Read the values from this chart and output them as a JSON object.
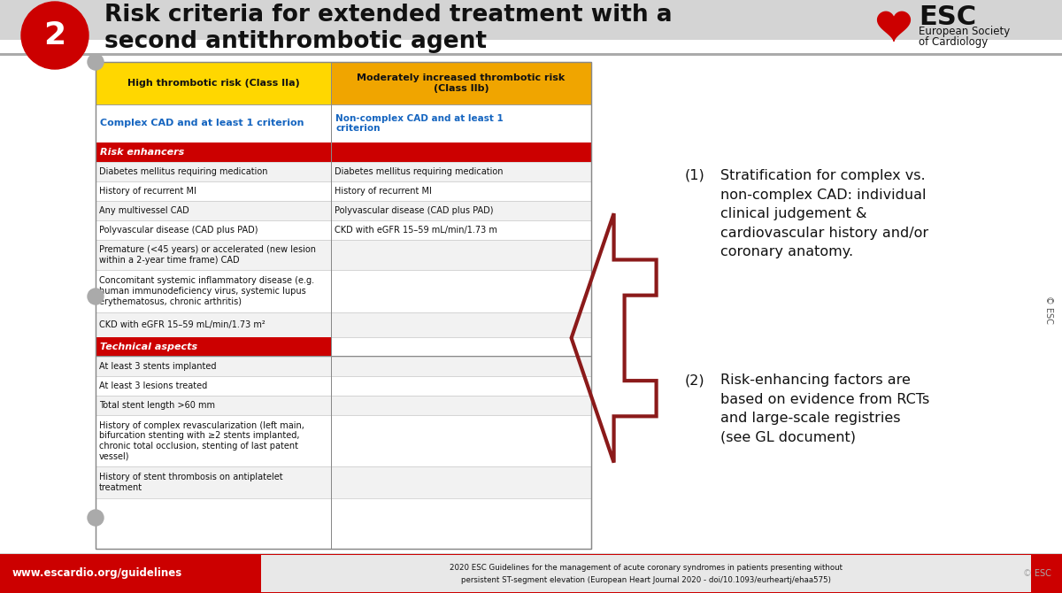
{
  "title_line1": "Risk criteria for extended treatment with a",
  "title_line2": "second antithrombotic agent",
  "slide_number": "2",
  "bg_color": "#d4d4d4",
  "header_yellow": "#FFD700",
  "header_orange": "#F0A500",
  "red_bar": "#CC0000",
  "dark_red": "#8B1A1A",
  "blue_text": "#1565C0",
  "col1_header": "High thrombotic risk (Class IIa)",
  "col2_header": "Moderately increased thrombotic risk\n(Class IIb)",
  "col1_sub": "Complex CAD and at least 1 criterion",
  "col2_sub": "Non-complex CAD and at least 1\ncriterion",
  "section1_label": "Risk enhancers",
  "section2_label": "Technical aspects",
  "col1_rows_sect1": [
    "Diabetes mellitus requiring medication",
    "History of recurrent MI",
    "Any multivessel CAD",
    "Polyvascular disease (CAD plus PAD)",
    "Premature (<45 years) or accelerated (new lesion\nwithin a 2-year time frame) CAD",
    "Concomitant systemic inflammatory disease (e.g.\nhuman immunodeficiency virus, systemic lupus\nerythematosus, chronic arthritis)",
    "CKD with eGFR 15–59 mL/min/1.73 m²"
  ],
  "col2_rows_sect1": [
    "Diabetes mellitus requiring medication",
    "History of recurrent MI",
    "Polyvascular disease (CAD plus PAD)",
    "CKD with eGFR 15–59 mL/min/1.73 m",
    "",
    "",
    ""
  ],
  "col1_rows_sect2": [
    "At least 3 stents implanted",
    "At least 3 lesions treated",
    "Total stent length >60 mm",
    "History of complex revascularization (left main,\nbifurcation stenting with ≥2 stents implanted,\nchronic total occlusion, stenting of last patent\nvessel)",
    "History of stent thrombosis on antiplatelet\ntreatment"
  ],
  "col2_rows_sect2": [
    "",
    "",
    "",
    "",
    ""
  ],
  "ann1_num": "(1)",
  "ann1_text": "Stratification for complex vs.\nnon-complex CAD: individual\nclinical judgement &\ncardiovascular history and/or\ncoronary anatomy.",
  "ann2_num": "(2)",
  "ann2_text": "Risk-enhancing factors are\nbased on evidence from RCTs\nand large-scale registries\n(see GL document)",
  "footer_left": "www.escardio.org/guidelines",
  "footer_center_line1": "2020 ESC Guidelines for the management of acute coronary syndromes in patients presenting without",
  "footer_center_line2": "persistent ST-segment elevation (European Heart Journal 2020 - doi/10.1093/eurheartj/ehaa575)",
  "copyright": "© ESC",
  "esc_text": "ESC",
  "esc_sub1": "European Society",
  "esc_sub2": "of Cardiology"
}
